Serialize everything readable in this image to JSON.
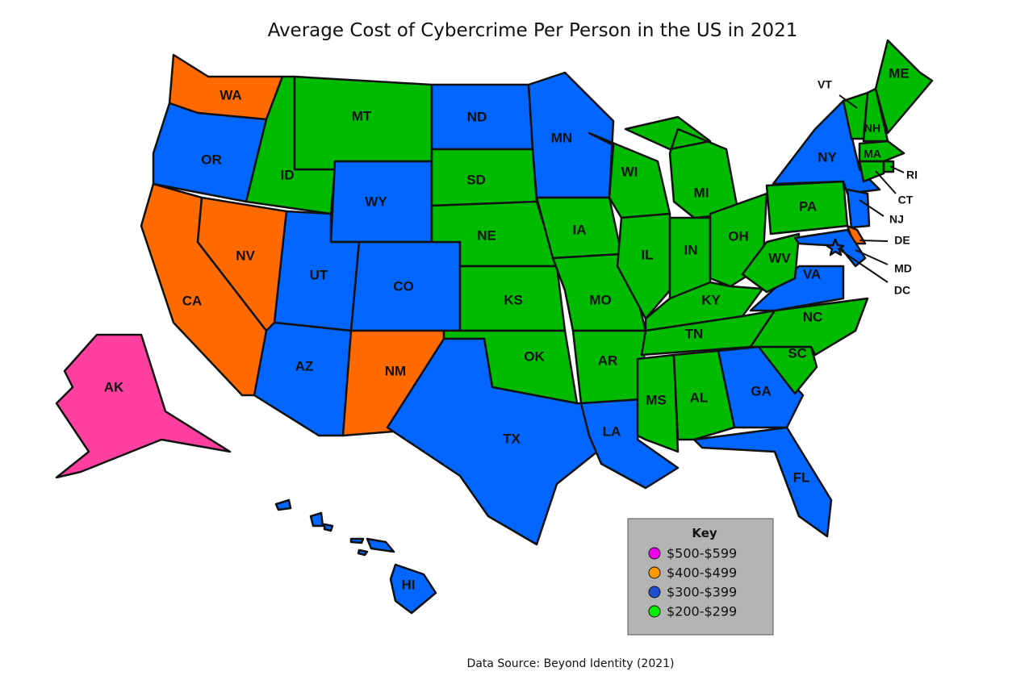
{
  "title": "Average Cost of Cybercrime Per Person in the US in 2021",
  "source": "Data Source: Beyond Identity (2021)",
  "key": {
    "title": "Key",
    "items": [
      {
        "label": "$500-$599",
        "swatch": "#ee00ee",
        "fill": "#ff3fa0"
      },
      {
        "label": "$400-$499",
        "swatch": "#ff9900",
        "fill": "#ff6a00"
      },
      {
        "label": "$300-$399",
        "swatch": "#1f50d0",
        "fill": "#0066ff"
      },
      {
        "label": "$200-$299",
        "swatch": "#00ee00",
        "fill": "#00bb00"
      }
    ]
  },
  "states": [
    {
      "abbr": "WA",
      "band": 1
    },
    {
      "abbr": "OR",
      "band": 2
    },
    {
      "abbr": "CA",
      "band": 1
    },
    {
      "abbr": "NV",
      "band": 1
    },
    {
      "abbr": "ID",
      "band": 3
    },
    {
      "abbr": "MT",
      "band": 3
    },
    {
      "abbr": "WY",
      "band": 2
    },
    {
      "abbr": "UT",
      "band": 2
    },
    {
      "abbr": "CO",
      "band": 2
    },
    {
      "abbr": "AZ",
      "band": 2
    },
    {
      "abbr": "NM",
      "band": 1
    },
    {
      "abbr": "ND",
      "band": 2
    },
    {
      "abbr": "SD",
      "band": 3
    },
    {
      "abbr": "NE",
      "band": 3
    },
    {
      "abbr": "KS",
      "band": 3
    },
    {
      "abbr": "OK",
      "band": 3
    },
    {
      "abbr": "TX",
      "band": 2
    },
    {
      "abbr": "MN",
      "band": 2
    },
    {
      "abbr": "IA",
      "band": 3
    },
    {
      "abbr": "MO",
      "band": 3
    },
    {
      "abbr": "AR",
      "band": 3
    },
    {
      "abbr": "LA",
      "band": 2
    },
    {
      "abbr": "WI",
      "band": 3
    },
    {
      "abbr": "IL",
      "band": 3
    },
    {
      "abbr": "MI",
      "band": 3
    },
    {
      "abbr": "IN",
      "band": 3
    },
    {
      "abbr": "OH",
      "band": 3
    },
    {
      "abbr": "KY",
      "band": 3
    },
    {
      "abbr": "TN",
      "band": 3
    },
    {
      "abbr": "MS",
      "band": 3
    },
    {
      "abbr": "AL",
      "band": 3
    },
    {
      "abbr": "GA",
      "band": 2
    },
    {
      "abbr": "FL",
      "band": 2
    },
    {
      "abbr": "SC",
      "band": 3
    },
    {
      "abbr": "NC",
      "band": 3
    },
    {
      "abbr": "VA",
      "band": 2
    },
    {
      "abbr": "WV",
      "band": 3
    },
    {
      "abbr": "PA",
      "band": 3
    },
    {
      "abbr": "NY",
      "band": 2
    },
    {
      "abbr": "VT",
      "band": 3
    },
    {
      "abbr": "NH",
      "band": 3
    },
    {
      "abbr": "ME",
      "band": 3
    },
    {
      "abbr": "MA",
      "band": 3
    },
    {
      "abbr": "RI",
      "band": 3
    },
    {
      "abbr": "CT",
      "band": 3
    },
    {
      "abbr": "NJ",
      "band": 2
    },
    {
      "abbr": "DE",
      "band": 1
    },
    {
      "abbr": "MD",
      "band": 2
    },
    {
      "abbr": "DC",
      "band": 2
    },
    {
      "abbr": "AK",
      "band": 0
    },
    {
      "abbr": "HI",
      "band": 2
    }
  ]
}
